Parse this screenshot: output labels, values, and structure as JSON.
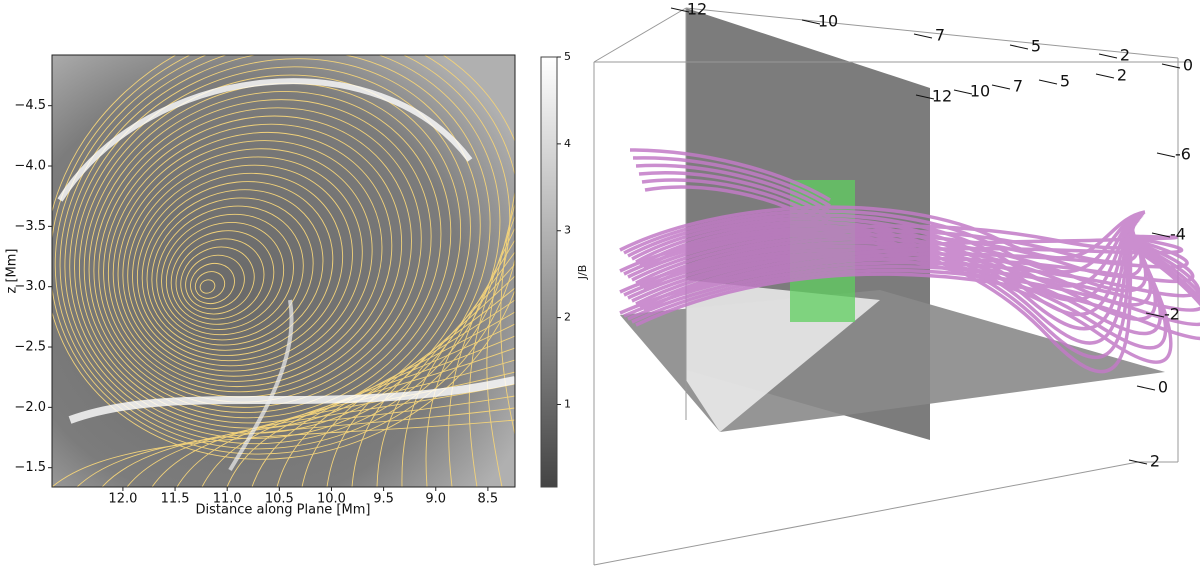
{
  "chart_data": [
    {
      "type": "heatmap",
      "xlabel": "Distance along Plane [Mm]",
      "ylabel": "z [Mm]",
      "xlim": [
        12.68,
        8.24
      ],
      "ylim": [
        -1.34,
        -4.92
      ],
      "xticks": [
        {
          "value": 12,
          "label": "12.0"
        },
        11.5,
        {
          "value": 11,
          "label": "11.0"
        },
        10.5,
        {
          "value": 10,
          "label": "10.0"
        },
        9.5,
        {
          "value": 9,
          "label": "9.0"
        },
        8.5
      ],
      "yticks": [
        {
          "value": -4.5,
          "label": "−4.5"
        },
        {
          "value": -4,
          "label": "−4.0"
        },
        {
          "value": -3.5,
          "label": "−3.5"
        },
        {
          "value": -3,
          "label": "−3.0"
        },
        {
          "value": -2.5,
          "label": "−2.5"
        },
        {
          "value": -2,
          "label": "−2.0"
        },
        {
          "value": -1.5,
          "label": "−1.5"
        }
      ],
      "colorbar": {
        "label": "J/B",
        "lim": [
          0.05,
          5
        ],
        "ticks": [
          1,
          2,
          3,
          4,
          5
        ]
      }
    },
    {
      "type": "3d",
      "xticks": [
        12,
        10,
        7,
        5,
        2
      ],
      "yticks": [
        12,
        10,
        7,
        5,
        2,
        0
      ],
      "zticks": [
        -6,
        -4,
        -2,
        0,
        2
      ]
    }
  ]
}
